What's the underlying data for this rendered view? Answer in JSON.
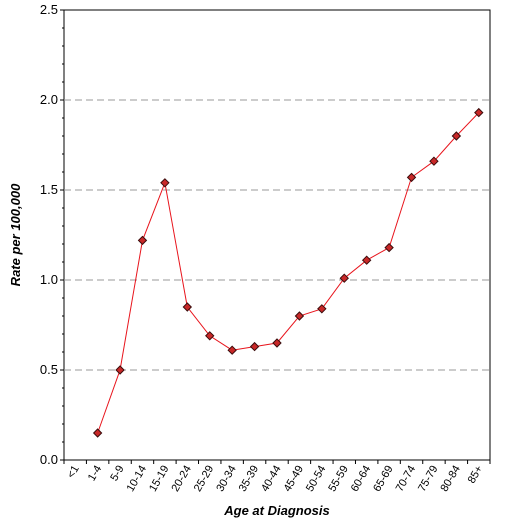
{
  "chart_data": {
    "type": "line",
    "title": "",
    "xlabel": "Age at Diagnosis",
    "ylabel": "Rate per 100,000",
    "categories": [
      "<1",
      "1-4",
      "5-9",
      "10-14",
      "15-19",
      "20-24",
      "25-29",
      "30-34",
      "35-39",
      "40-44",
      "45-49",
      "50-54",
      "55-59",
      "60-64",
      "65-69",
      "70-74",
      "75-79",
      "80-84",
      "85+"
    ],
    "series": [
      {
        "values": [
          null,
          0.15,
          0.5,
          1.22,
          1.54,
          0.85,
          0.69,
          0.61,
          0.63,
          0.65,
          0.8,
          0.84,
          1.01,
          1.11,
          1.18,
          1.57,
          1.66,
          1.8,
          1.93
        ]
      }
    ],
    "ylim": [
      0,
      2.5
    ],
    "yticks": [
      "0.0",
      "0.5",
      "1.0",
      "1.5",
      "2.0",
      "2.5"
    ],
    "gridlines": [
      0.5,
      1.0,
      1.5,
      2.0
    ],
    "grid": true,
    "line_color": "#e8141c",
    "marker_color": "#c82828",
    "marker_edge_color": "#3a0c0c",
    "grid_color": "#999999"
  }
}
